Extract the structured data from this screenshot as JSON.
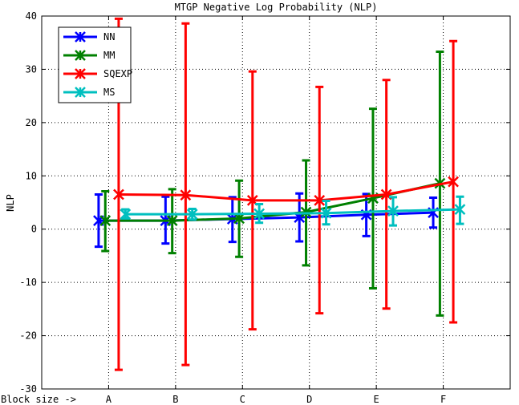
{
  "chart_data": {
    "type": "line",
    "title": "MTGP Negative Log Probability (NLP)",
    "xlabel": "",
    "ylabel": "NLP",
    "x_prefix_label": "Block size ->",
    "categories": [
      "A",
      "B",
      "C",
      "D",
      "E",
      "F"
    ],
    "xlim": [
      0,
      7
    ],
    "ylim": [
      -30,
      40
    ],
    "yticks": [
      -30,
      -20,
      -10,
      0,
      10,
      20,
      30,
      40
    ],
    "grid": true,
    "legend_position": "top-left",
    "series": [
      {
        "name": "NN",
        "color": "#0000ff",
        "offset": -0.15,
        "values": [
          1.6,
          1.6,
          1.9,
          2.2,
          2.7,
          3.1
        ],
        "err_low": [
          -3.3,
          -2.7,
          -2.4,
          -2.3,
          -1.3,
          0.3
        ],
        "err_high": [
          6.5,
          6.1,
          6.0,
          6.7,
          6.6,
          5.9
        ]
      },
      {
        "name": "MM",
        "color": "#008000",
        "offset": -0.05,
        "values": [
          1.6,
          1.6,
          2.0,
          3.2,
          5.8,
          8.6
        ],
        "err_low": [
          -4.1,
          -4.5,
          -5.2,
          -6.8,
          -11.1,
          -16.2
        ],
        "err_high": [
          7.1,
          7.5,
          9.1,
          12.9,
          22.6,
          33.3
        ]
      },
      {
        "name": "SQEXP",
        "color": "#ff0000",
        "offset": 0.15,
        "values": [
          6.5,
          6.4,
          5.4,
          5.4,
          6.5,
          8.9
        ],
        "err_low": [
          -26.4,
          -25.5,
          -18.8,
          -15.8,
          -14.9,
          -17.5
        ],
        "err_high": [
          39.5,
          38.6,
          29.6,
          26.7,
          28.0,
          35.3
        ]
      },
      {
        "name": "MS",
        "color": "#00bfbf",
        "offset": 0.25,
        "values": [
          2.8,
          2.8,
          2.9,
          3.0,
          3.4,
          3.7
        ],
        "err_low": [
          2.0,
          1.8,
          1.2,
          0.9,
          0.7,
          1.0
        ],
        "err_high": [
          3.7,
          3.8,
          4.7,
          5.3,
          6.0,
          6.1
        ]
      }
    ]
  }
}
